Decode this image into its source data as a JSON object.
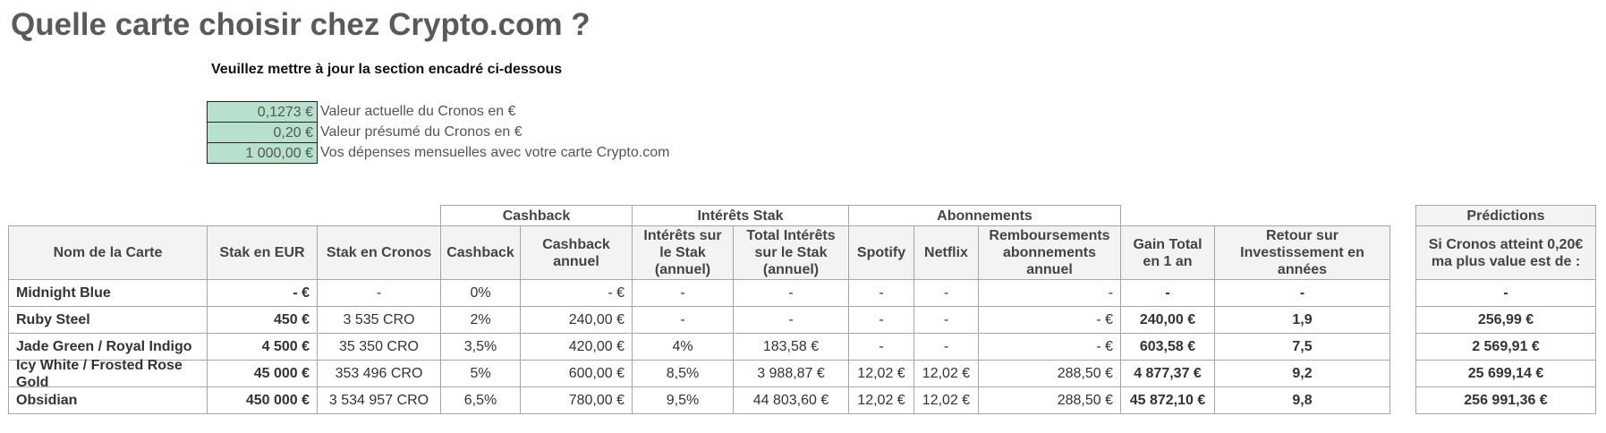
{
  "title": "Quelle carte choisir chez Crypto.com ?",
  "instruction": "Veuillez mettre à jour la section encadré ci-dessous",
  "inputs": [
    {
      "value": "0,1273 €",
      "label": "Valeur actuelle du Cronos en €"
    },
    {
      "value": "0,20 €",
      "label": "Valeur présumé du Cronos en €"
    },
    {
      "value": "1 000,00 €",
      "label": "Vos dépenses mensuelles avec votre carte Crypto.com"
    }
  ],
  "table": {
    "groups": [
      "Cashback",
      "Intérêts Stak",
      "Abonnements"
    ],
    "headers": [
      "Nom de la Carte",
      "Stak en EUR",
      "Stak en Cronos",
      "Cashback",
      "Cashback annuel",
      "Intérêts sur le Stak (annuel)",
      "Total Intérêts sur le Stak (annuel)",
      "Spotify",
      "Netflix",
      "Remboursements abonnements annuel",
      "Gain Total en 1 an",
      "Retour sur Investissement en années"
    ],
    "rows": [
      [
        "Midnight Blue",
        "- €",
        "-",
        "0%",
        "- €",
        "-",
        "-",
        "-",
        "-",
        "-",
        "-",
        "-"
      ],
      [
        "Ruby Steel",
        "450 €",
        "3 535 CRO",
        "2%",
        "240,00 €",
        "-",
        "-",
        "-",
        "-",
        "- €",
        "240,00 €",
        "1,9"
      ],
      [
        "Jade Green / Royal Indigo",
        "4 500 €",
        "35 350 CRO",
        "3,5%",
        "420,00 €",
        "4%",
        "183,58 €",
        "-",
        "-",
        "- €",
        "603,58 €",
        "7,5"
      ],
      [
        "Icy White / Frosted Rose Gold",
        "45 000 €",
        "353 496 CRO",
        "5%",
        "600,00 €",
        "8,5%",
        "3 988,87 €",
        "12,02 €",
        "12,02 €",
        "288,50 €",
        "4 877,37 €",
        "9,2"
      ],
      [
        "Obsidian",
        "450 000 €",
        "3 534 957 CRO",
        "6,5%",
        "780,00 €",
        "9,5%",
        "44 803,60 €",
        "12,02 €",
        "12,02 €",
        "288,50 €",
        "45 872,10 €",
        "9,8"
      ]
    ]
  },
  "predictions": {
    "group": "Prédictions",
    "header": "Si Cronos atteint 0,20€ ma plus value est de :",
    "rows": [
      "-",
      "256,99 €",
      "2 569,91 €",
      "25 699,14 €",
      "256 991,36 €"
    ]
  }
}
